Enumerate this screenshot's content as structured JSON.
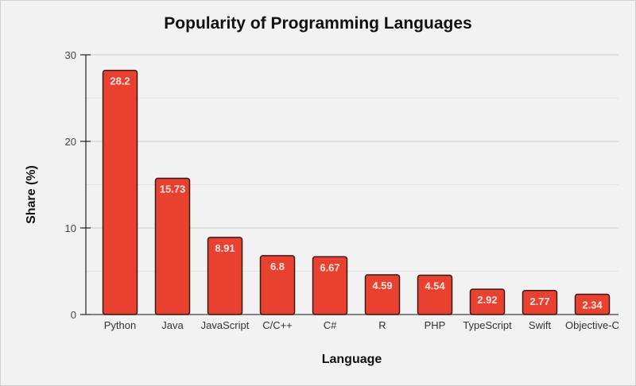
{
  "chart_data": {
    "type": "bar",
    "title": "Popularity of Programming Languages",
    "xlabel": "Language",
    "ylabel": "Share (%)",
    "categories": [
      "Python",
      "Java",
      "JavaScript",
      "C/C++",
      "C#",
      "R",
      "PHP",
      "TypeScript",
      "Swift",
      "Objective-C"
    ],
    "values": [
      28.2,
      15.73,
      8.91,
      6.8,
      6.67,
      4.59,
      4.54,
      2.92,
      2.77,
      2.34
    ],
    "value_labels": [
      "28.2",
      "15.73",
      "8.91",
      "6.8",
      "6.67",
      "4.59",
      "4.54",
      "2.92",
      "2.77",
      "2.34"
    ],
    "ylim": [
      0,
      30
    ],
    "yticks": [
      0,
      10,
      20,
      30
    ],
    "grid": true,
    "bar_color": "#e8412f",
    "bar_edge_color": "#3a1a16"
  }
}
